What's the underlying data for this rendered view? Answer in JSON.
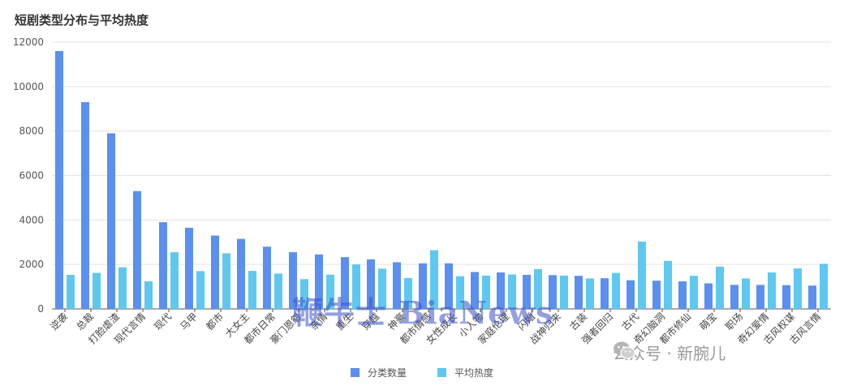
{
  "chart_data": {
    "type": "bar",
    "title": "短剧类型分布与平均热度",
    "xlabel": "",
    "ylabel": "",
    "ylim": [
      0,
      12000
    ],
    "yticks": [
      0,
      2000,
      4000,
      6000,
      8000,
      10000,
      12000
    ],
    "grid": true,
    "legend_position": "bottom",
    "categories": [
      "逆袭",
      "总裁",
      "打脸虐渣",
      "现代言情",
      "现代",
      "马甲",
      "都市",
      "大女主",
      "都市日常",
      "豪门恩怨",
      "亲情",
      "重生",
      "穿越",
      "神豪",
      "都市情感",
      "女性成长",
      "小人物",
      "家庭伦理",
      "闪婚",
      "战神归来",
      "古装",
      "强者回归",
      "古代",
      "奇幻脑洞",
      "都市修仙",
      "萌宝",
      "职场",
      "奇幻爱情",
      "古风权谋",
      "古风言情"
    ],
    "series": [
      {
        "name": "分类数量",
        "color": "#5b8ff0",
        "values": [
          11600,
          9300,
          7900,
          5300,
          3900,
          3650,
          3300,
          3150,
          2800,
          2550,
          2450,
          2330,
          2230,
          2100,
          2050,
          2050,
          1660,
          1640,
          1530,
          1520,
          1490,
          1380,
          1290,
          1270,
          1240,
          1150,
          1080,
          1080,
          1070,
          1050
        ]
      },
      {
        "name": "平均热度",
        "color": "#5ec8f0",
        "values": [
          1530,
          1620,
          1870,
          1240,
          2550,
          1700,
          2500,
          1710,
          1590,
          1340,
          1540,
          2000,
          1810,
          1390,
          2640,
          1470,
          1500,
          1550,
          1790,
          1500,
          1370,
          1620,
          3030,
          2160,
          1490,
          1900,
          1370,
          1640,
          1820,
          2030
        ]
      }
    ]
  },
  "legend": [
    {
      "label": "分类数量",
      "color": "#5b8ff0"
    },
    {
      "label": "平均热度",
      "color": "#5ec8f0"
    }
  ],
  "watermark": "鞭牛士 BiaNews",
  "wechat_label": "公众号 · 新腕儿"
}
